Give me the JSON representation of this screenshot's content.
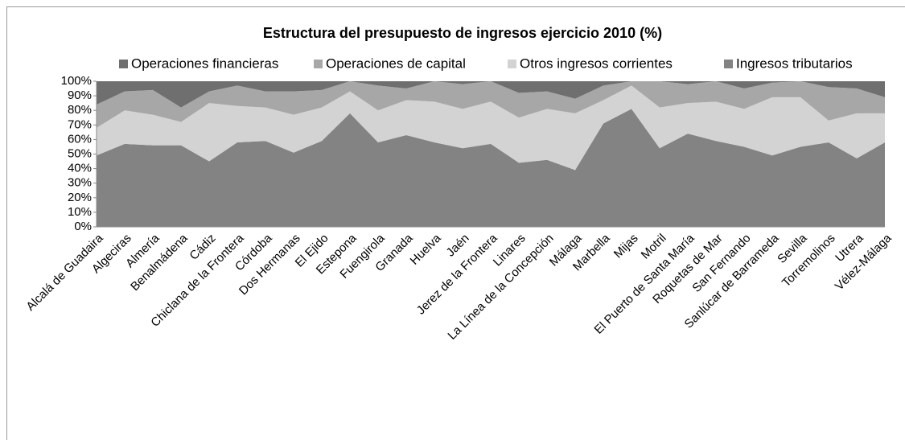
{
  "chart_data": {
    "type": "stacked_area_100",
    "title": "Estructura del presupuesto de ingresos ejercicio 2010 (%)",
    "categories": [
      "Alcalá de Guadaira",
      "Algeciras",
      "Almería",
      "Benalmádena",
      "Cádiz",
      "Chiclana de la Frontera",
      "Córdoba",
      "Dos Hermanas",
      "El Ejido",
      "Estepona",
      "Fuengirola",
      "Granada",
      "Huelva",
      "Jaén",
      "Jerez de la Frontera",
      "Linares",
      "La Línea de la Concepción",
      "Málaga",
      "Marbella",
      "Mijas",
      "Motril",
      "El Puerto de Santa María",
      "Roquetas de Mar",
      "San Fernando",
      "Sanlúcar de Barrameda",
      "Sevilla",
      "Torremolinos",
      "Utrera",
      "Vélez-Málaga"
    ],
    "series": [
      {
        "name": "Ingresos tributarios",
        "color": "#838383",
        "values": [
          49,
          57,
          56,
          56,
          45,
          58,
          59,
          51,
          59,
          78,
          58,
          63,
          58,
          54,
          57,
          44,
          46,
          39,
          71,
          81,
          54,
          64,
          59,
          55,
          49,
          55,
          58,
          47,
          58
        ]
      },
      {
        "name": "Otros ingresos corrientes",
        "color": "#d3d3d3",
        "values": [
          19,
          23,
          21,
          16,
          40,
          25,
          23,
          26,
          23,
          15,
          22,
          24,
          28,
          27,
          29,
          31,
          35,
          39,
          16,
          16,
          28,
          21,
          27,
          26,
          40,
          34,
          15,
          31,
          20
        ]
      },
      {
        "name": "Operaciones de capital",
        "color": "#a7a7a7",
        "values": [
          16,
          13,
          17,
          10,
          8,
          14,
          11,
          16,
          12,
          7,
          17,
          8,
          14,
          17,
          14,
          17,
          12,
          10,
          10,
          3,
          18,
          13,
          14,
          14,
          10,
          11,
          23,
          17,
          11
        ]
      },
      {
        "name": "Operaciones financieras",
        "color": "#6f6f6f",
        "values": [
          16,
          7,
          6,
          18,
          7,
          3,
          7,
          7,
          6,
          0,
          3,
          5,
          0,
          2,
          0,
          8,
          7,
          12,
          3,
          0,
          0,
          2,
          0,
          5,
          1,
          0,
          4,
          5,
          11
        ]
      }
    ],
    "legend_order": [
      "Operaciones financieras",
      "Operaciones de capital",
      "Otros ingresos corrientes",
      "Ingresos tributarios"
    ],
    "ylim": [
      0,
      100
    ],
    "yticks": [
      {
        "value": 0,
        "label": "0%"
      },
      {
        "value": 10,
        "label": "10%"
      },
      {
        "value": 20,
        "label": "20%"
      },
      {
        "value": 30,
        "label": "30%"
      },
      {
        "value": 40,
        "label": "40%"
      },
      {
        "value": 50,
        "label": "50%"
      },
      {
        "value": 60,
        "label": "60%"
      },
      {
        "value": 70,
        "label": "70%"
      },
      {
        "value": 80,
        "label": "80%"
      },
      {
        "value": 90,
        "label": "90%"
      },
      {
        "value": 100,
        "label": "100%"
      }
    ],
    "legend": "top"
  }
}
